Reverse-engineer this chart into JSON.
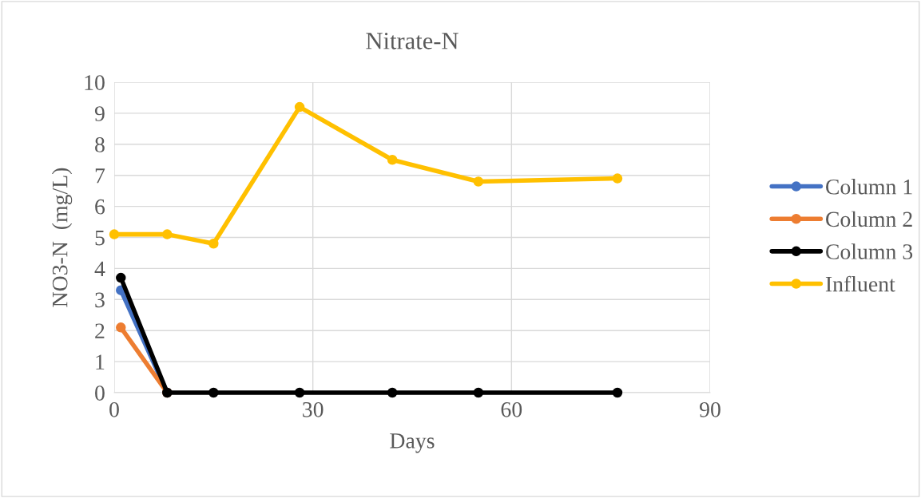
{
  "chart_data": {
    "type": "line",
    "title": "Nitrate-N",
    "xlabel": "Days",
    "ylabel": "NO3-N  (mg/L)",
    "x": [
      1,
      8,
      15,
      28,
      42,
      55,
      76
    ],
    "series": [
      {
        "name": "Column 1",
        "color": "#4472c4",
        "values": [
          3.3,
          0,
          null,
          null,
          null,
          null,
          null
        ]
      },
      {
        "name": "Column 2",
        "color": "#ed7d31",
        "values": [
          2.1,
          0,
          null,
          null,
          null,
          null,
          null
        ]
      },
      {
        "name": "Column 3",
        "color": "#000000",
        "values": [
          3.7,
          0,
          0,
          0,
          0,
          0,
          0
        ]
      },
      {
        "name": "Influent",
        "color": "#ffc000",
        "x": [
          0,
          8,
          15,
          28,
          42,
          55,
          76
        ],
        "values": [
          5.1,
          5.1,
          4.8,
          9.2,
          7.5,
          6.8,
          6.9
        ]
      }
    ],
    "xlim": [
      0,
      90
    ],
    "xticks": [
      0,
      30,
      60,
      90
    ],
    "ylim": [
      0,
      10
    ],
    "yticks": [
      0,
      1,
      2,
      3,
      4,
      5,
      6,
      7,
      8,
      9,
      10
    ],
    "grid": true,
    "legend": "right",
    "marker": "circle",
    "line_style": "solid"
  }
}
